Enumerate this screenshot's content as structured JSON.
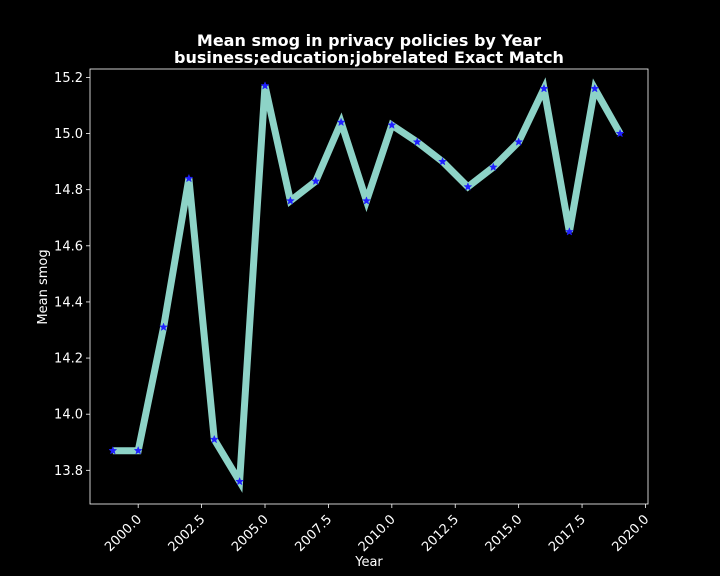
{
  "chart_data": {
    "type": "line",
    "title_line1": "Mean smog in privacy policies by Year",
    "title_line2": "business;education;jobrelated Exact Match",
    "xlabel": "Year",
    "ylabel": "Mean smog",
    "xlim": [
      1998.1,
      2020.1
    ],
    "ylim": [
      13.68,
      15.23
    ],
    "xticks": [
      2000.0,
      2002.5,
      2005.0,
      2007.5,
      2010.0,
      2012.5,
      2015.0,
      2017.5,
      2020.0
    ],
    "xtick_labels": [
      "2000.0",
      "2002.5",
      "2005.0",
      "2007.5",
      "2010.0",
      "2012.5",
      "2015.0",
      "2017.5",
      "2020.0"
    ],
    "yticks": [
      13.8,
      14.0,
      14.2,
      14.4,
      14.6,
      14.8,
      15.0,
      15.2
    ],
    "ytick_labels": [
      "13.8",
      "14.0",
      "14.2",
      "14.4",
      "14.6",
      "14.8",
      "15.0",
      "15.2"
    ],
    "grid": false,
    "line_color": "#8dd3c7",
    "marker_color": "#1f1fff",
    "marker": "star",
    "series": [
      {
        "x": [
          1999,
          2000,
          2001,
          2002,
          2003,
          2004,
          2005,
          2006,
          2007,
          2008,
          2009,
          2010,
          2011,
          2012,
          2013,
          2014,
          2015,
          2016,
          2017,
          2018,
          2019
        ],
        "values": [
          13.87,
          13.87,
          14.31,
          14.84,
          13.91,
          13.76,
          15.17,
          14.76,
          14.83,
          15.04,
          14.76,
          15.03,
          14.97,
          14.9,
          14.81,
          14.88,
          14.97,
          15.16,
          14.65,
          15.16,
          15.0
        ]
      }
    ]
  }
}
